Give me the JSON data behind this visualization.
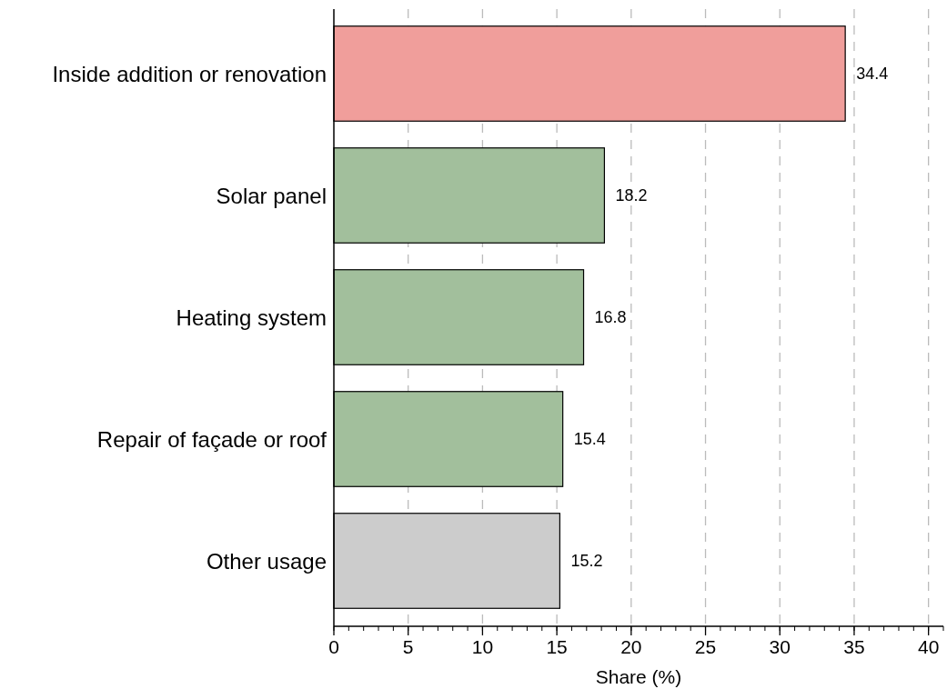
{
  "chart_data": {
    "type": "bar",
    "orientation": "horizontal",
    "xlabel": "Share (%)",
    "categories": [
      "Inside addition or renovation",
      "Solar panel",
      "Heating system",
      "Repair of façade or roof",
      "Other usage"
    ],
    "values": [
      34.4,
      18.2,
      16.8,
      15.4,
      15.2
    ],
    "colors": [
      "#f09e9b",
      "#a2bf9c",
      "#a2bf9c",
      "#a2bf9c",
      "#cccccc"
    ],
    "xlim": [
      0,
      41
    ],
    "xticks": [
      0,
      5,
      10,
      15,
      20,
      25,
      30,
      35,
      40
    ],
    "grid": "x",
    "data_labels": true
  }
}
